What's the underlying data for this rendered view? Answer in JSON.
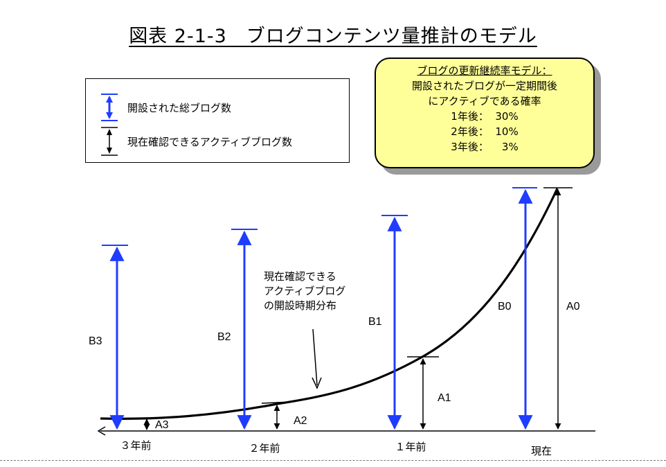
{
  "title": "図表 2-1-3　ブログコンテンツ量推計のモデル",
  "legend": {
    "total_label": "開設された総ブログ数",
    "active_label": "現在確認できるアクティブブログ数"
  },
  "callout": {
    "heading": "ブログの更新継続率モデル：",
    "line1": "開設されたブログが一定期間後",
    "line2": "にアクティブである確率",
    "rates": [
      "1年後：  30%",
      "2年後：  10%",
      "3年後：    3%"
    ]
  },
  "annotation": [
    "現在確認できる",
    "アクティブブログ",
    "の開設時期分布"
  ],
  "x_ticks": [
    "３年前",
    "２年前",
    "１年前",
    "現在"
  ],
  "bars": {
    "B3": "B3",
    "B2": "B2",
    "B1": "B1",
    "B0": "B0",
    "A3": "A3",
    "A2": "A2",
    "A1": "A1",
    "A0": "A0"
  },
  "colors": {
    "blue": "#1f3cff",
    "callout_fill": "#ffff99",
    "shadow": "#9a9a9a"
  }
}
